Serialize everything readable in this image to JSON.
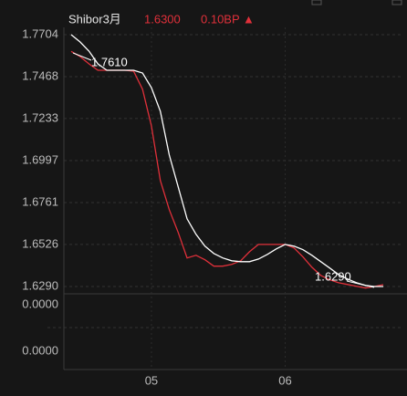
{
  "chart_data": {
    "type": "line",
    "title": "Shibor3月",
    "last": "1.6300",
    "change": "0.10BP ▲",
    "xlim": [
      0,
      35
    ],
    "xticks": [
      {
        "value": 9,
        "label": "05"
      },
      {
        "value": 24,
        "label": "06"
      }
    ],
    "ylim": [
      1.6259,
      1.7745
    ],
    "yticks": [
      1.7704,
      1.7468,
      1.7233,
      1.6997,
      1.6761,
      1.6526,
      {
        "value": 1.629,
        "label": "1.6290"
      }
    ],
    "grid": true,
    "series": [
      {
        "color": "#e0303a",
        "values": [
          1.761,
          1.7581,
          1.754,
          1.7504,
          1.7504,
          1.7504,
          1.7504,
          1.7499,
          1.7397,
          1.7192,
          1.6885,
          1.6721,
          1.6593,
          1.645,
          1.6465,
          1.644,
          1.6404,
          1.6404,
          1.6414,
          1.6434,
          1.6485,
          1.6526,
          1.6526,
          1.6526,
          1.6526,
          1.6506,
          1.6455,
          1.6398,
          1.6352,
          1.6327,
          1.6311,
          1.6301,
          1.6291,
          1.6281,
          1.629,
          1.63
        ]
      },
      {
        "color": "#ffffff",
        "values": [
          1.7704,
          1.7663,
          1.7612,
          1.754,
          1.7504,
          1.7504,
          1.7504,
          1.7504,
          1.7489,
          1.7407,
          1.7274,
          1.7028,
          1.6849,
          1.667,
          1.6583,
          1.6516,
          1.6475,
          1.645,
          1.6434,
          1.6429,
          1.6429,
          1.6444,
          1.647,
          1.6501,
          1.6526,
          1.6516,
          1.6496,
          1.6465,
          1.6429,
          1.6393,
          1.6357,
          1.6332,
          1.6311,
          1.6296,
          1.629,
          1.629
        ]
      }
    ],
    "annotations": [
      "1.7610",
      "1.6290"
    ]
  },
  "lower_panel": {
    "ytick_labels": [
      "0.0000",
      "0.0000"
    ]
  }
}
